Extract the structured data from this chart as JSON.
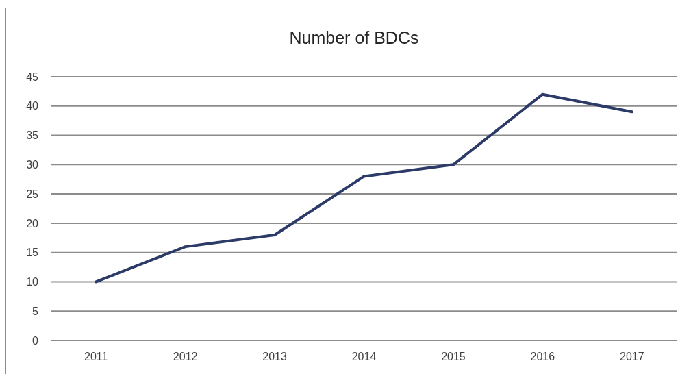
{
  "chart_data": {
    "type": "line",
    "title": "Number of BDCs",
    "categories": [
      "2011",
      "2012",
      "2013",
      "2014",
      "2015",
      "2016",
      "2017"
    ],
    "series": [
      {
        "color": "#2b3a67",
        "values": [
          10,
          16,
          18,
          28,
          30,
          42,
          39
        ]
      }
    ],
    "ylim": [
      0,
      45
    ],
    "yticks": [
      0,
      5,
      10,
      15,
      20,
      25,
      30,
      35,
      40,
      45
    ],
    "grid": "y",
    "marker": "none",
    "line_style": "solid"
  }
}
